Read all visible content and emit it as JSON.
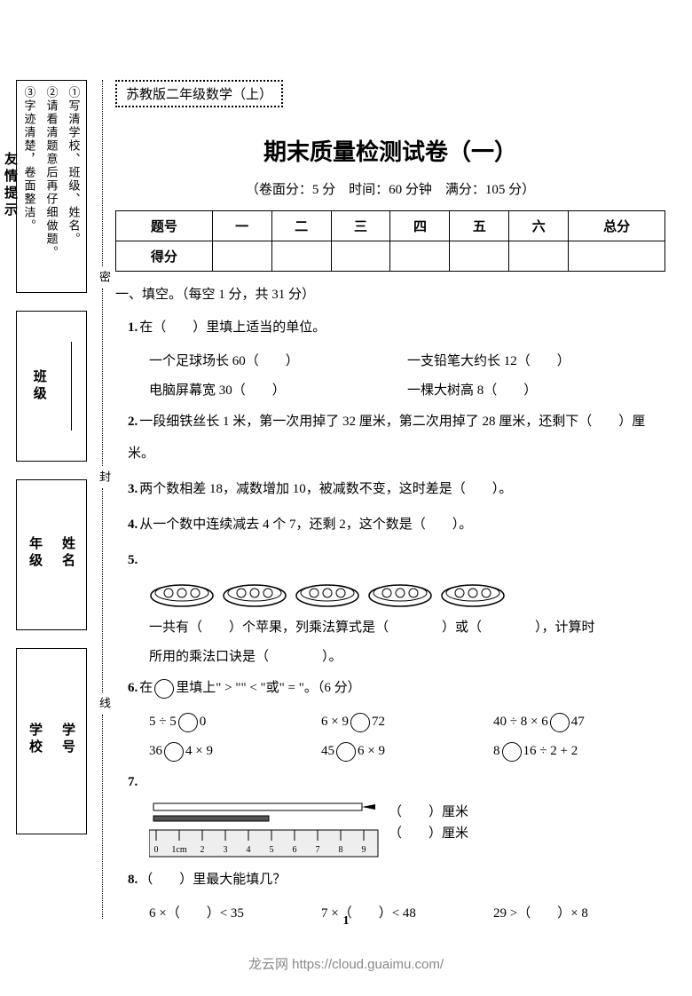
{
  "sidebar": {
    "heading": "友情提示",
    "tips": [
      "①写清学校、班级、姓名。",
      "②请看清题意后再仔细做题。",
      "③字迹清楚，卷面整洁。"
    ],
    "labels": {
      "class": "班级",
      "grade": "年级",
      "name": "姓名",
      "school": "学校",
      "sid": "学号"
    },
    "seal": {
      "a": "密",
      "b": "封",
      "c": "线"
    }
  },
  "header": {
    "badge": "苏教版二年级数学（上）",
    "title": "期末质量检测试卷（一）",
    "subtitle": "（卷面分：5 分　时间：60 分钟　满分：105 分）"
  },
  "scoreTable": {
    "head": [
      "题号",
      "一",
      "二",
      "三",
      "四",
      "五",
      "六",
      "总分"
    ],
    "row": "得分"
  },
  "sectionA": {
    "head": "一、填空。（每空 1 分，共 31 分）",
    "q1": {
      "stem": "在（　　）里填上适当的单位。",
      "a": "一个足球场长 60（　　）",
      "b": "一支铅笔大约长 12（　　）",
      "c": "电脑屏幕宽 30（　　）",
      "d": "一棵大树高 8（　　）"
    },
    "q2": "一段细铁丝长 1 米，第一次用掉了 32 厘米，第二次用掉了 28 厘米，还剩下（　　）厘米。",
    "q3": "两个数相差 18，减数增加 10，被减数不变，这时差是（　　）。",
    "q4": "从一个数中连续减去 4 个 7，还剩 2，这个数是（　　）。",
    "q5": {
      "a": "一共有（　　）个苹果，列乘法算式是（　　　　）或（　　　　），计算时",
      "b": "所用的乘法口诀是（　　　　）。"
    },
    "q6": {
      "stem": "在",
      "stem2": "里填上\" > \"\" < \"或\" = \"。（6 分）",
      "r1a": "5 ÷ 5",
      "r1b": "0",
      "r1c": "6 × 9",
      "r1d": "72",
      "r1e": "40 ÷ 8 × 6",
      "r1f": "47",
      "r2a": "36",
      "r2b": "4 × 9",
      "r2c": "45",
      "r2d": "6 × 9",
      "r2e": "8",
      "r2f": "16 ÷ 2 + 2"
    },
    "q7": {
      "a": "（　　）厘米",
      "b": "（　　）厘米"
    },
    "q8": {
      "stem": "（　　）里最大能填几？",
      "a": "6 ×（　　）< 35",
      "b": "7 ×（　　）< 48",
      "c": "29 >（　　）× 8"
    }
  },
  "ruler": {
    "marks": [
      "0",
      "1cm",
      "2",
      "3",
      "4",
      "5",
      "6",
      "7",
      "8",
      "9"
    ]
  },
  "page": {
    "num": "1",
    "credit": "龙云网 https://cloud.guaimu.com/"
  }
}
